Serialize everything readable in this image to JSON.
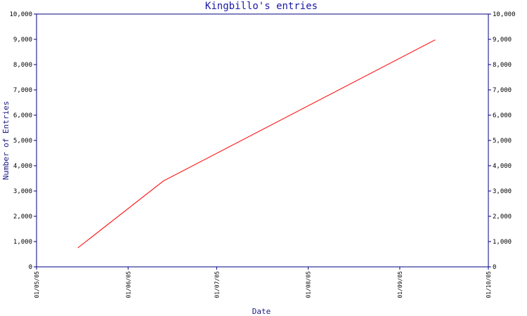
{
  "chart_data": {
    "type": "line",
    "title": "Kingbillo's entries",
    "xlabel": "Date",
    "ylabel": "Number of Entries",
    "x_axis_type": "date",
    "x_range": [
      "2005-05-01",
      "2005-10-01"
    ],
    "x_ticks": [
      {
        "date": "2005-05-01",
        "label": "01/05/05"
      },
      {
        "date": "2005-06-01",
        "label": "01/06/05"
      },
      {
        "date": "2005-07-01",
        "label": "01/07/05"
      },
      {
        "date": "2005-08-01",
        "label": "01/08/05"
      },
      {
        "date": "2005-09-01",
        "label": "01/09/05"
      },
      {
        "date": "2005-10-01",
        "label": "01/10/05"
      }
    ],
    "ylim": [
      0,
      10000
    ],
    "y_ticks": [
      0,
      1000,
      2000,
      3000,
      4000,
      5000,
      6000,
      7000,
      8000,
      9000,
      10000
    ],
    "y_tick_labels": [
      "0",
      "1,000",
      "2,000",
      "3,000",
      "4,000",
      "5,000",
      "6,000",
      "7,000",
      "8,000",
      "9,000",
      "10,000"
    ],
    "y_axis_both_sides": true,
    "grid": false,
    "series": [
      {
        "color": "#ff0000",
        "points": [
          {
            "x": "2005-05-15",
            "y": 750
          },
          {
            "x": "2005-06-13",
            "y": 3400
          },
          {
            "x": "2005-09-13",
            "y": 8980
          }
        ]
      }
    ],
    "colors": {
      "axis": "#000080",
      "line": "#ff0000",
      "title": "#1a1aa6"
    }
  }
}
